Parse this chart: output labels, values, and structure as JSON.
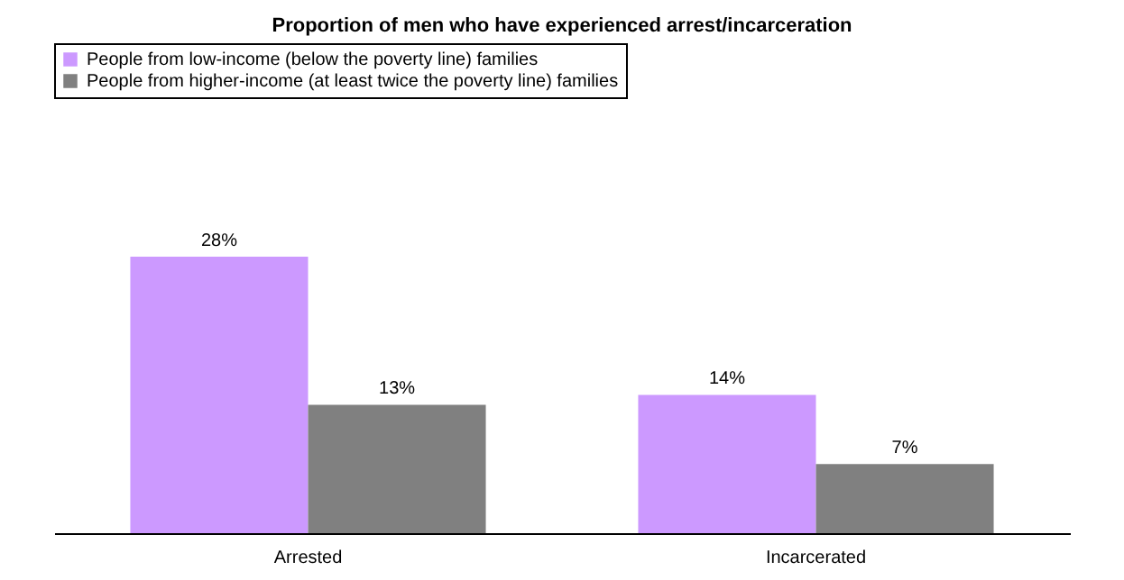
{
  "chart_data": {
    "type": "bar",
    "title": "Proportion of men who have experienced arrest/incarceration",
    "categories": [
      "Arrested",
      "Incarcerated"
    ],
    "series": [
      {
        "name": "People from low-income (below the poverty line) families",
        "color": "#cc99ff",
        "values": [
          28,
          14
        ],
        "value_labels": [
          "28%",
          "14%"
        ]
      },
      {
        "name": "People from higher-income (at least twice the poverty line) families",
        "color": "#808080",
        "values": [
          13,
          7
        ],
        "value_labels": [
          "13%",
          "7%"
        ]
      }
    ],
    "legend": "top",
    "grid": false
  }
}
